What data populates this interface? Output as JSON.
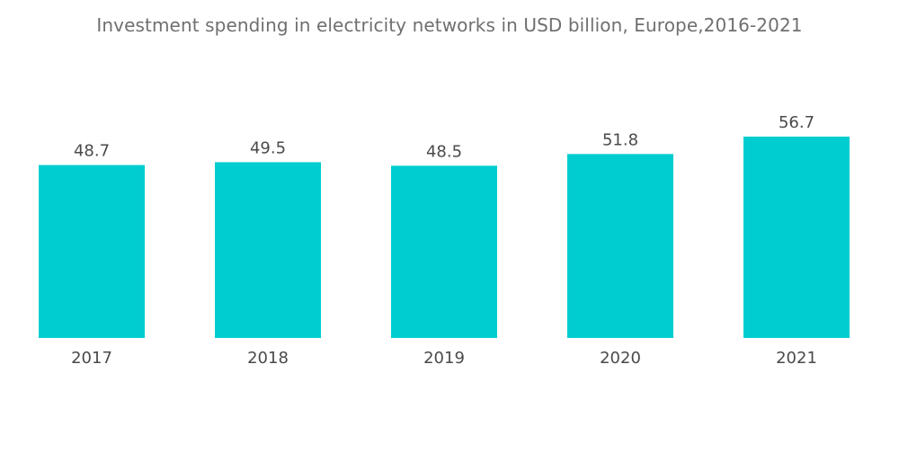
{
  "chart_data": {
    "type": "bar",
    "title": "Investment spending in electricity networks in USD billion, Europe,2016-2021",
    "categories": [
      "2017",
      "2018",
      "2019",
      "2020",
      "2021"
    ],
    "values": [
      48.7,
      49.5,
      48.5,
      51.8,
      56.7
    ],
    "value_labels": [
      "48.7",
      "49.5",
      "48.5",
      "51.8",
      "56.7"
    ],
    "xlabel": "",
    "ylabel": "",
    "ylim": [
      0,
      56.7
    ],
    "grid": false,
    "legend": "none",
    "bar_color": "#00cdd0",
    "text_color": "#4a4a4a"
  }
}
